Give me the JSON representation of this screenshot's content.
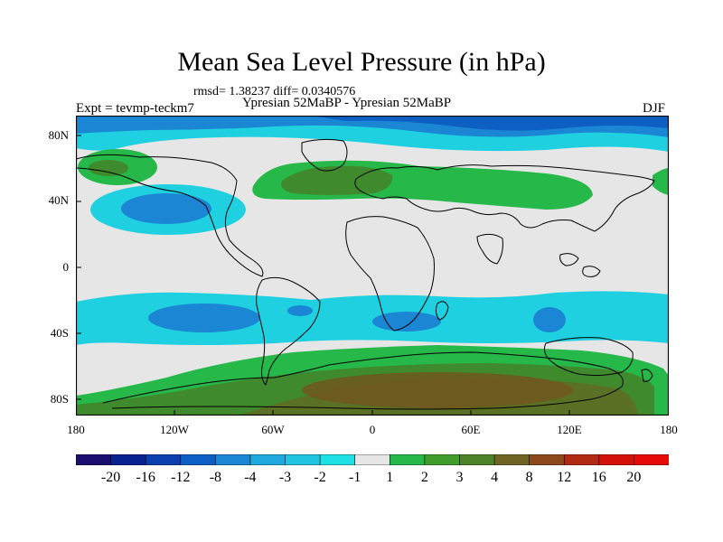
{
  "header": {
    "title": "Mean Sea Level Pressure (in hPa)",
    "stats": "rmsd= 1.38237 diff= 0.0340576",
    "experiment": "Expt = tevmp-teckm7",
    "comparison": "Ypresian  52MaBP - Ypresian  52MaBP",
    "season": "DJF"
  },
  "axes": {
    "lat_labels": [
      "80N",
      "40N",
      "0",
      "40S",
      "80S"
    ],
    "lon_labels": [
      "180",
      "120W",
      "60W",
      "0",
      "60E",
      "120E",
      "180"
    ]
  },
  "colorbar": {
    "levels": [
      "-20",
      "-16",
      "-12",
      "-8",
      "-4",
      "-3",
      "-2",
      "-1",
      "1",
      "2",
      "3",
      "4",
      "8",
      "12",
      "16",
      "20"
    ],
    "colors": [
      "#1a0f6e",
      "#08238f",
      "#0a3fad",
      "#0d5fc4",
      "#1a86d4",
      "#1fa8dd",
      "#20c3e0",
      "#1fe0e4",
      "#e6e6e6",
      "#27b84a",
      "#3f9c2d",
      "#4e8228",
      "#6f6424",
      "#8c4a1c",
      "#b02a14",
      "#d4120c",
      "#e60b0b"
    ]
  },
  "colors": {
    "neutral": "#e6e6e6",
    "cyan": "#1fd0e0",
    "blue": "#1a86d4",
    "deep_blue": "#0d5fc4",
    "green": "#27b84a",
    "dark_green": "#3f8a2d",
    "olive": "#5a7024",
    "brown": "#70561f"
  }
}
